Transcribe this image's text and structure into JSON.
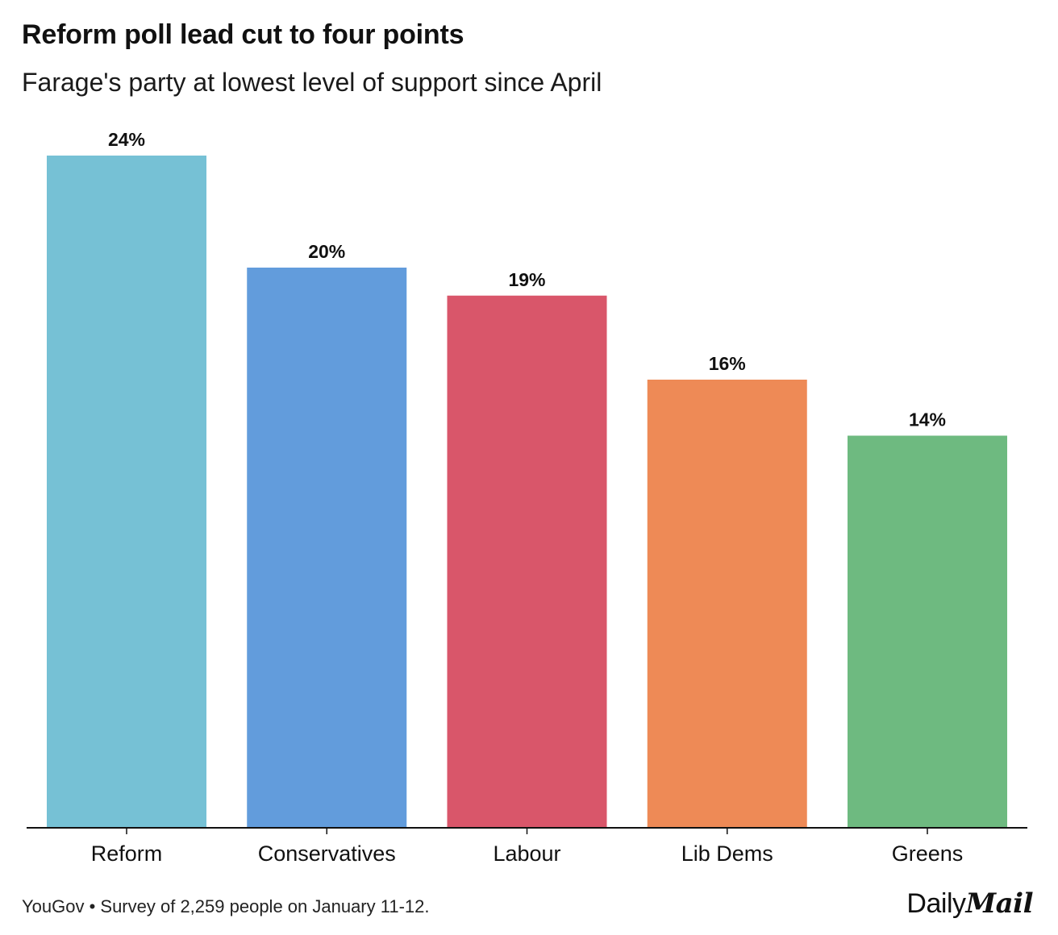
{
  "title": "Reform poll lead cut to four points",
  "subtitle": "Farage's party at lowest level of support since April",
  "footer": {
    "source": "YouGov • Survey of 2,259 people on January 11-12."
  },
  "logo": {
    "daily": "Daily",
    "mail": "Mail"
  },
  "chart_data": {
    "type": "bar",
    "title": "Reform poll lead cut to four points",
    "subtitle": "Farage's party at lowest level of support since April",
    "categories": [
      "Reform",
      "Conservatives",
      "Labour",
      "Lib Dems",
      "Greens"
    ],
    "values": [
      24,
      20,
      19,
      16,
      14
    ],
    "labels": [
      "24%",
      "20%",
      "19%",
      "16%",
      "14%"
    ],
    "colors": [
      "#76c1d5",
      "#629cdc",
      "#d9566a",
      "#ee8a56",
      "#6eba80"
    ],
    "xlabel": "",
    "ylabel": "",
    "ylim": [
      0,
      24
    ],
    "grid": false,
    "legend": "none"
  }
}
